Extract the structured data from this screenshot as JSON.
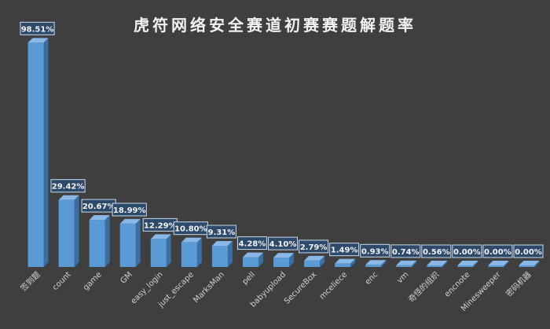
{
  "chart_data": {
    "type": "bar",
    "title": "虎符网络安全赛道初赛赛题解题率",
    "categories": [
      "签到题",
      "count",
      "game",
      "GM",
      "easy_login",
      "just_escape",
      "MarksMan",
      "pell",
      "babyupload",
      "SecureBox",
      "mceliece",
      "enc",
      "vm",
      "奇怪的组织",
      "encnote",
      "Minesweeper",
      "密码机器"
    ],
    "values": [
      98.51,
      29.42,
      20.67,
      18.99,
      12.29,
      10.8,
      9.31,
      4.28,
      4.1,
      2.79,
      1.49,
      0.93,
      0.74,
      0.56,
      0.0,
      0.0,
      0.0
    ],
    "value_labels": [
      "98.51%",
      "29.42%",
      "20.67%",
      "18.99%",
      "12.29%",
      "10.80%",
      "9.31%",
      "4.28%",
      "4.10%",
      "2.79%",
      "1.49%",
      "0.93%",
      "0.74%",
      "0.56%",
      "0.00%",
      "0.00%",
      "0.00%"
    ],
    "ylim": [
      0,
      100
    ],
    "grid": false,
    "legend": "none",
    "colors": {
      "background": "#3f3f3f",
      "bar_front": "#5b9bd5",
      "bar_side": "#3a6fa3",
      "bar_top": "#8ab8e6",
      "label_bg": "#2e4a6b",
      "label_border": "#c9d9ea",
      "text": "#f2f2f2",
      "axis_text": "#d0d0d0"
    }
  }
}
